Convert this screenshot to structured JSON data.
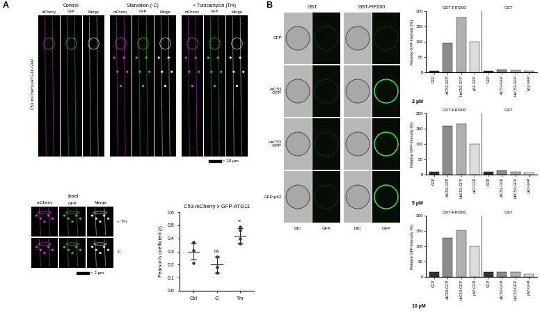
{
  "panel_labels": [
    "A",
    "B"
  ],
  "panel_a": {
    "side_label": "C53-mCherryxATG11-GFP",
    "conditions": [
      "Control",
      "Starvation (-C)",
      "+ Tunicamycin (Tm)"
    ],
    "channels": [
      "mCherry",
      "GFP",
      "Merge"
    ],
    "scale_bar": "= 10 µm",
    "inset": {
      "title": "Inset",
      "channels": [
        "mCherry",
        "GFP",
        "Merge"
      ],
      "rows": [
        "+ Tm",
        "-C"
      ],
      "scale_bar": "= 2 µm"
    }
  },
  "panel_b": {
    "groups": [
      "GST",
      "GST-FIP200"
    ],
    "rows": [
      "GFP",
      "AtC53\n-GFP",
      "HsC53\n-GFP",
      "GFP-p62"
    ],
    "columns": [
      "DIC",
      "GFP",
      "DIC",
      "GFP"
    ]
  },
  "chart_data": [
    {
      "type": "scatter",
      "title": "C53-mCherry x GFP-ATG11",
      "y_label": "Pearson's coefficient (r)",
      "categories": [
        "Ctrl",
        "-C",
        "Tm"
      ],
      "points": [
        [
          0.37,
          0.31,
          0.21
        ],
        [
          0.26,
          0.18,
          0.14
        ],
        [
          0.49,
          0.46,
          0.4,
          0.36
        ]
      ],
      "mean": [
        0.3,
        0.2,
        0.42
      ],
      "error": [
        0.06,
        0.06,
        0.06
      ],
      "significance": [
        null,
        "ns",
        "**"
      ],
      "color": "#333333",
      "ylim": [
        0,
        0.6
      ],
      "yticks": [
        {
          "value": 0,
          "label": "0.0"
        },
        0.1,
        0.2,
        0.3,
        0.4,
        0.5,
        0.6
      ]
    },
    {
      "type": "bar",
      "y_label": "Relative GFP-Intensity (%)",
      "concentration": "2 µM",
      "groups": [
        "GST-FIP200",
        "GST"
      ],
      "categories": [
        "GFP",
        "AtC53-GFP",
        "HsC53-GFP",
        "p62-GFP",
        "GFP",
        "AtC53-GFP",
        "HsC53-GFP",
        "p62-GFP"
      ],
      "values": [
        5,
        95,
        180,
        100,
        5,
        10,
        7,
        4
      ],
      "colors": [
        "#333333",
        "#8c8c8c",
        "#b0b0b0",
        "#dcdcdc",
        "#333333",
        "#8c8c8c",
        "#b0b0b0",
        "#dcdcdc"
      ],
      "ylim": [
        0,
        200
      ],
      "yticks": [
        0,
        50,
        100,
        150,
        200
      ]
    },
    {
      "type": "bar",
      "y_label": "Relative GFP-Intensity (%)",
      "concentration": "5 µM",
      "groups": [
        "GST-FIP200",
        "GST"
      ],
      "categories": [
        "GFP",
        "AtC53-GFP",
        "HsC53-GFP",
        "p62-GFP",
        "GFP",
        "AtC53-GFP",
        "HsC53-GFP",
        "p62-GFP"
      ],
      "values": [
        10,
        160,
        165,
        100,
        10,
        13,
        10,
        6
      ],
      "colors": [
        "#333333",
        "#8c8c8c",
        "#b0b0b0",
        "#dcdcdc",
        "#333333",
        "#8c8c8c",
        "#b0b0b0",
        "#dcdcdc"
      ],
      "ylim": [
        0,
        200
      ],
      "yticks": [
        0,
        50,
        100,
        150,
        200
      ]
    },
    {
      "type": "bar",
      "y_label": "Relative GFP-Intensity (%)",
      "concentration": "10 µM",
      "groups": [
        "GST-FIP200",
        "GST"
      ],
      "categories": [
        "GFP",
        "AtC53-GFP",
        "HsC53-GFP",
        "p62-GFP",
        "GFP",
        "AtC53-GFP",
        "HsC53-GFP",
        "p62-GFP"
      ],
      "values": [
        15,
        127,
        152,
        100,
        17,
        17,
        15,
        8
      ],
      "colors": [
        "#333333",
        "#8c8c8c",
        "#b0b0b0",
        "#dcdcdc",
        "#333333",
        "#8c8c8c",
        "#b0b0b0",
        "#dcdcdc"
      ],
      "ylim": [
        0,
        200
      ],
      "yticks": [
        0,
        50,
        100,
        150,
        200
      ]
    }
  ]
}
